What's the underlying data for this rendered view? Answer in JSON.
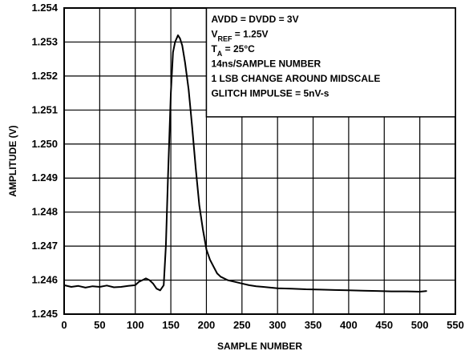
{
  "chart_data": {
    "type": "line",
    "xlabel": "SAMPLE NUMBER",
    "ylabel": "AMPLITUDE (V)",
    "xlim": [
      0,
      550
    ],
    "ylim": [
      1.245,
      1.254
    ],
    "x_ticks": [
      0,
      50,
      100,
      150,
      200,
      250,
      300,
      350,
      400,
      450,
      500,
      550
    ],
    "y_ticks": [
      "1.254",
      "1.253",
      "1.252",
      "1.251",
      "1.250",
      "1.249",
      "1.248",
      "1.247",
      "1.246",
      "1.245"
    ],
    "grid": true,
    "line_color": "#000000",
    "annotations": [
      {
        "main": "AVDD = DVDD = 3V",
        "sub": "",
        "tail": ""
      },
      {
        "main": "V",
        "sub": "REF",
        "tail": " = 1.25V"
      },
      {
        "main": "T",
        "sub": "A",
        "tail": " = 25°C"
      },
      {
        "main": "14ns/SAMPLE NUMBER",
        "sub": "",
        "tail": ""
      },
      {
        "main": "1 LSB CHANGE AROUND MIDSCALE",
        "sub": "",
        "tail": ""
      },
      {
        "main": "GLITCH IMPULSE = 5nV-s",
        "sub": "",
        "tail": ""
      }
    ],
    "series": [
      {
        "x": [
          0,
          10,
          20,
          30,
          40,
          50,
          60,
          70,
          80,
          90,
          100,
          105,
          110,
          115,
          120,
          125,
          130,
          135,
          140,
          143,
          146,
          150,
          153,
          156,
          160,
          163,
          166,
          170,
          175,
          180,
          185,
          190,
          195,
          200,
          205,
          210,
          215,
          220,
          230,
          240,
          250,
          260,
          270,
          280,
          290,
          300,
          320,
          340,
          360,
          380,
          400,
          420,
          440,
          460,
          480,
          500,
          510
        ],
        "y": [
          1.24585,
          1.2458,
          1.24583,
          1.24578,
          1.24582,
          1.2458,
          1.24584,
          1.24579,
          1.2458,
          1.24583,
          1.24585,
          1.24595,
          1.246,
          1.24605,
          1.246,
          1.2459,
          1.24575,
          1.2457,
          1.24585,
          1.247,
          1.249,
          1.2515,
          1.2527,
          1.253,
          1.2532,
          1.2531,
          1.2529,
          1.2524,
          1.2516,
          1.2505,
          1.2493,
          1.2482,
          1.2475,
          1.2469,
          1.2466,
          1.2464,
          1.2462,
          1.2461,
          1.246,
          1.24595,
          1.2459,
          1.24585,
          1.24582,
          1.2458,
          1.24578,
          1.24576,
          1.24575,
          1.24573,
          1.24572,
          1.24571,
          1.2457,
          1.24569,
          1.24568,
          1.24567,
          1.24567,
          1.24566,
          1.24568
        ]
      }
    ]
  }
}
